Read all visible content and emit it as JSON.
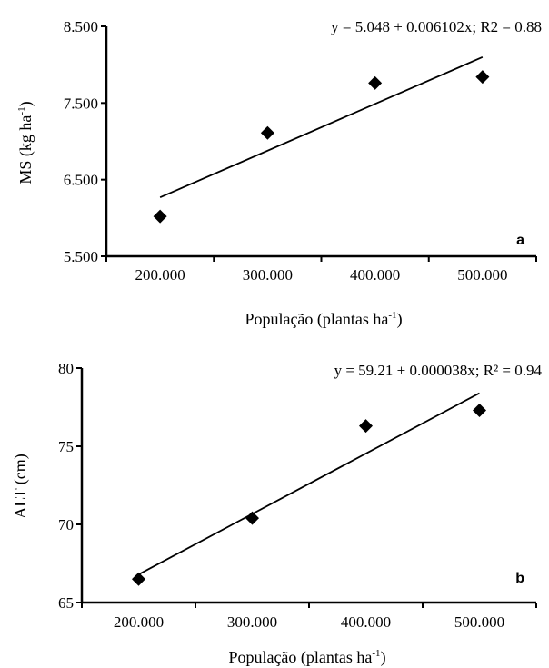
{
  "chart_data": [
    {
      "type": "scatter",
      "panel_label": "a",
      "equation": "y = 5.048 + 0.006102x; R2 = 0.88",
      "xlabel": "População (plantas ha-1)",
      "xlabel_main": "População (plantas ha",
      "xlabel_sup": "-1",
      "xlabel_end": ")",
      "ylabel": "MS (kg ha-1)",
      "ylabel_main": "MS (kg ha",
      "ylabel_sup": "-1",
      "ylabel_end": ")",
      "x_ticks": [
        "200.000",
        "300.000",
        "400.000",
        "500.000"
      ],
      "x_tick_values": [
        200000,
        300000,
        400000,
        500000
      ],
      "y_ticks": [
        "5.500",
        "6.500",
        "7.500",
        "8.500"
      ],
      "y_tick_values": [
        5500,
        6500,
        7500,
        8500
      ],
      "xlim": [
        150000,
        550000
      ],
      "ylim": [
        5500,
        8500
      ],
      "grid": false,
      "marker": "diamond",
      "points": [
        {
          "x": 200000,
          "y": 6020
        },
        {
          "x": 300000,
          "y": 7110
        },
        {
          "x": 400000,
          "y": 7760
        },
        {
          "x": 500000,
          "y": 7840
        }
      ],
      "trendline": {
        "x": [
          200000,
          500000
        ],
        "y": [
          6268,
          8099
        ]
      }
    },
    {
      "type": "scatter",
      "panel_label": "b",
      "equation": "y = 59.21 + 0.000038x;  R² = 0.94",
      "xlabel": "População (plantas ha-1)",
      "xlabel_main": "População (plantas ha",
      "xlabel_sup": "-1",
      "xlabel_end": ")",
      "ylabel": "ALT (cm)",
      "x_ticks": [
        "200.000",
        "300.000",
        "400.000",
        "500.000"
      ],
      "x_tick_values": [
        200000,
        300000,
        400000,
        500000
      ],
      "y_ticks": [
        "65",
        "70",
        "75",
        "80"
      ],
      "y_tick_values": [
        65,
        70,
        75,
        80
      ],
      "xlim": [
        150000,
        550000
      ],
      "ylim": [
        65,
        80
      ],
      "grid": false,
      "marker": "diamond",
      "points": [
        {
          "x": 200000,
          "y": 66.5
        },
        {
          "x": 300000,
          "y": 70.4
        },
        {
          "x": 400000,
          "y": 76.3
        },
        {
          "x": 500000,
          "y": 77.3
        }
      ],
      "trendline": {
        "x": [
          200000,
          500000
        ],
        "y": [
          66.8,
          78.4
        ]
      }
    }
  ]
}
